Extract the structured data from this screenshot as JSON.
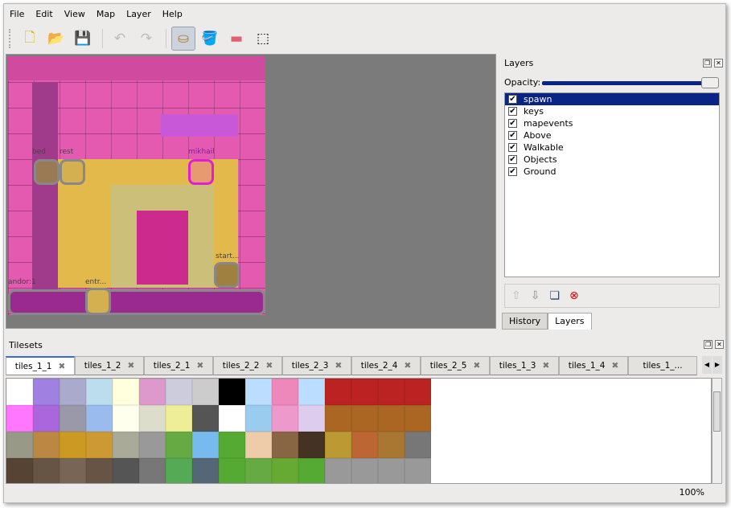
{
  "menu": [
    "File",
    "Edit",
    "View",
    "Map",
    "Layer",
    "Help"
  ],
  "toolbar": [
    {
      "icon": "new-icon",
      "g": "🗋"
    },
    {
      "icon": "open-icon",
      "g": "📂"
    },
    {
      "icon": "save-icon",
      "g": "💾"
    },
    {
      "icon": "undo-icon",
      "g": "↶"
    },
    {
      "icon": "redo-icon",
      "g": "↷"
    },
    {
      "icon": "stamp-brush-icon",
      "g": "⛀"
    },
    {
      "icon": "bucket-fill-icon",
      "g": "🪣"
    },
    {
      "icon": "eraser-icon",
      "g": "▬"
    },
    {
      "icon": "rect-select-icon",
      "g": "⬚"
    }
  ],
  "map": {
    "objects": [
      "bed",
      "rest",
      "mikhail",
      "start...",
      "andor:1",
      "entr..."
    ]
  },
  "layers": {
    "title": "Layers",
    "opacity_label": "Opacity:",
    "opacity": 0.95,
    "items": [
      "spawn",
      "keys",
      "mapevents",
      "Above",
      "Walkable",
      "Objects",
      "Ground"
    ],
    "selected": "spawn",
    "tabs": [
      "History",
      "Layers"
    ],
    "active_tab": "Layers"
  },
  "tilesets": {
    "title": "Tilesets",
    "tabs": [
      "tiles_1_1",
      "tiles_1_2",
      "tiles_2_1",
      "tiles_2_2",
      "tiles_2_3",
      "tiles_2_4",
      "tiles_2_5",
      "tiles_1_3",
      "tiles_1_4",
      "tiles_1_..."
    ],
    "active": "tiles_1_1"
  },
  "status": {
    "zoom": "100%"
  }
}
